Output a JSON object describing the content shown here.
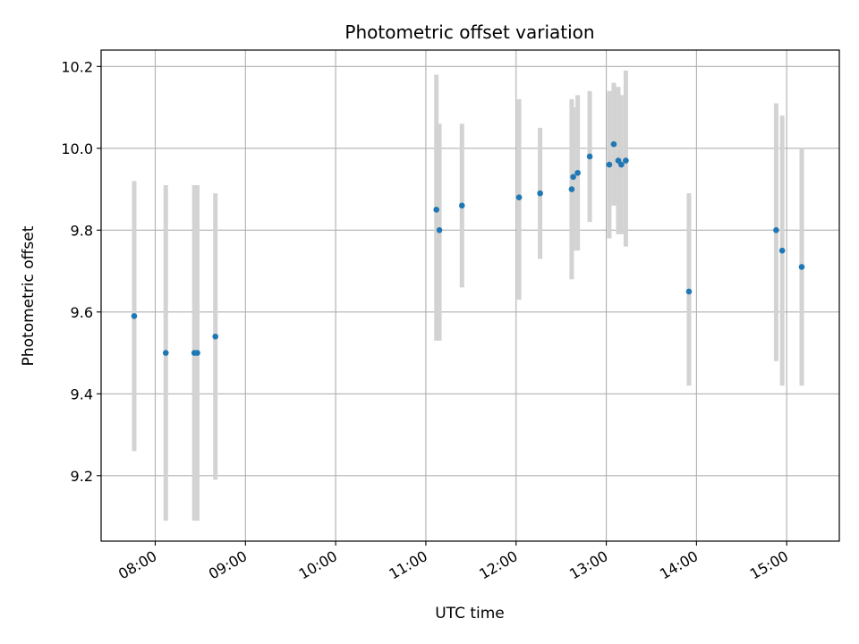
{
  "chart_data": {
    "type": "scatter",
    "title": "Photometric offset variation",
    "xlabel": "UTC time",
    "ylabel": "Photometric offset",
    "x_type": "time",
    "xlim": [
      "07:24",
      "15:35"
    ],
    "ylim": [
      9.04,
      10.24
    ],
    "x_ticks": [
      "08:00",
      "09:00",
      "10:00",
      "11:00",
      "12:00",
      "13:00",
      "14:00",
      "15:00"
    ],
    "y_ticks": [
      9.2,
      9.4,
      9.6,
      9.8,
      10.0,
      10.2
    ],
    "grid": true,
    "colors": {
      "point": "#1f77b4",
      "errorbar": "#d3d3d3",
      "grid": "#b0b0b0"
    },
    "points": [
      {
        "x": "07:46",
        "y": 9.59,
        "low": 9.26,
        "high": 9.92
      },
      {
        "x": "08:07",
        "y": 9.5,
        "low": 9.09,
        "high": 9.91
      },
      {
        "x": "08:26",
        "y": 9.5,
        "low": 9.09,
        "high": 9.91
      },
      {
        "x": "08:28",
        "y": 9.5,
        "low": 9.09,
        "high": 9.91
      },
      {
        "x": "08:40",
        "y": 9.54,
        "low": 9.19,
        "high": 9.89
      },
      {
        "x": "11:07",
        "y": 9.85,
        "low": 9.53,
        "high": 10.18
      },
      {
        "x": "11:09",
        "y": 9.8,
        "low": 9.53,
        "high": 10.06
      },
      {
        "x": "11:24",
        "y": 9.86,
        "low": 9.66,
        "high": 10.06
      },
      {
        "x": "12:02",
        "y": 9.88,
        "low": 9.63,
        "high": 10.12
      },
      {
        "x": "12:16",
        "y": 9.89,
        "low": 9.73,
        "high": 10.05
      },
      {
        "x": "12:37",
        "y": 9.9,
        "low": 9.68,
        "high": 10.12
      },
      {
        "x": "12:38",
        "y": 9.93,
        "low": 9.75,
        "high": 10.1
      },
      {
        "x": "12:41",
        "y": 9.94,
        "low": 9.75,
        "high": 10.13
      },
      {
        "x": "12:49",
        "y": 9.98,
        "low": 9.82,
        "high": 10.14
      },
      {
        "x": "13:02",
        "y": 9.96,
        "low": 9.78,
        "high": 10.14
      },
      {
        "x": "13:05",
        "y": 10.01,
        "low": 9.86,
        "high": 10.16
      },
      {
        "x": "13:08",
        "y": 9.97,
        "low": 9.79,
        "high": 10.15
      },
      {
        "x": "13:10",
        "y": 9.96,
        "low": 9.79,
        "high": 10.13
      },
      {
        "x": "13:13",
        "y": 9.97,
        "low": 9.76,
        "high": 10.19
      },
      {
        "x": "13:55",
        "y": 9.65,
        "low": 9.42,
        "high": 9.89
      },
      {
        "x": "14:53",
        "y": 9.8,
        "low": 9.48,
        "high": 10.11
      },
      {
        "x": "14:57",
        "y": 9.75,
        "low": 9.42,
        "high": 10.08
      },
      {
        "x": "15:10",
        "y": 9.71,
        "low": 9.42,
        "high": 10.0
      }
    ]
  }
}
